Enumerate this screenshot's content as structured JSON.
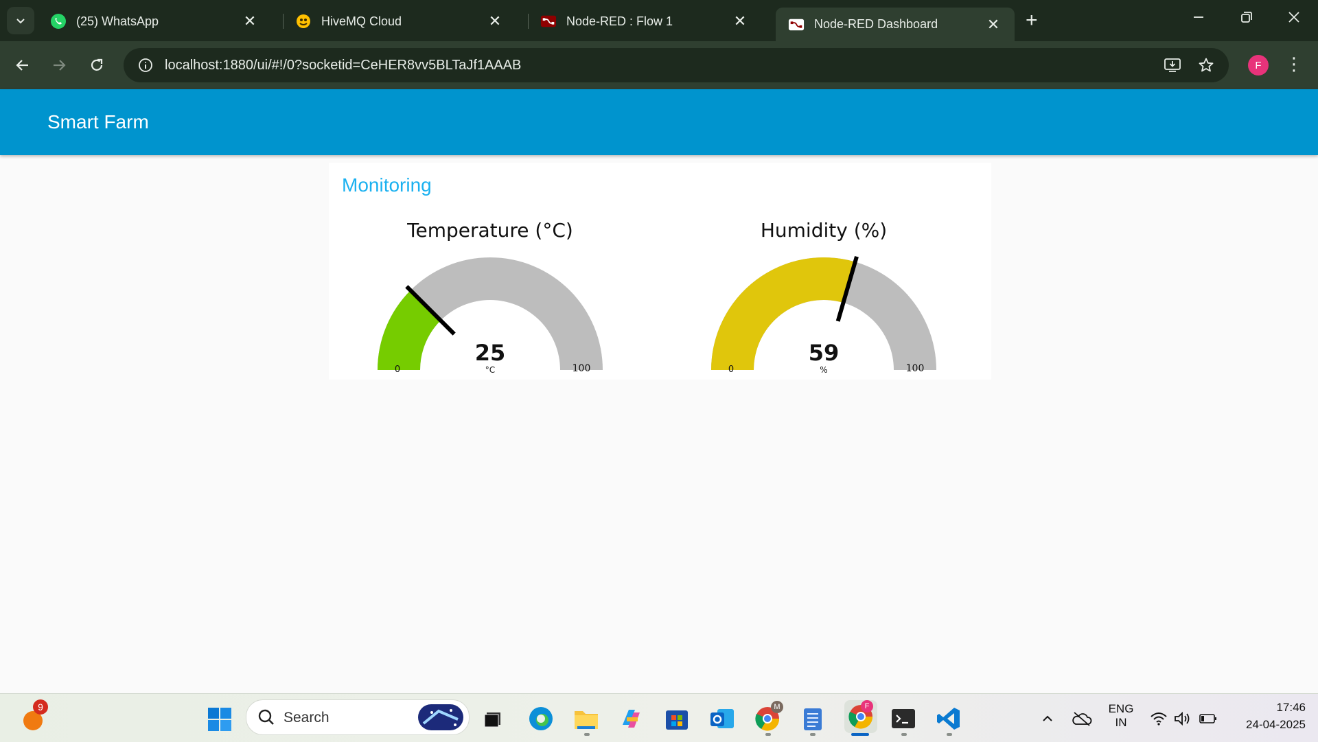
{
  "browser": {
    "tabs": [
      {
        "title": "(25) WhatsApp",
        "icon": "whatsapp-icon",
        "active": false
      },
      {
        "title": "HiveMQ Cloud",
        "icon": "hivemq-icon",
        "active": false
      },
      {
        "title": "Node-RED : Flow 1",
        "icon": "node-red-icon",
        "active": false
      },
      {
        "title": "Node-RED Dashboard",
        "icon": "node-red-icon",
        "active": true
      }
    ],
    "url": "localhost:1880/ui/#!/0?socketid=CeHER8vv5BLTaJf1AAAB",
    "profile_initial": "F"
  },
  "dashboard": {
    "header_title": "Smart Farm",
    "group_title": "Monitoring",
    "gauges": [
      {
        "title": "Temperature (°C)",
        "value": 25,
        "display_value": "25",
        "unit": "°C",
        "min": 0,
        "max": 100,
        "min_label": "0",
        "max_label": "100",
        "color": "#76cc00"
      },
      {
        "title": "Humidity (%)",
        "value": 59,
        "display_value": "59",
        "unit": "%",
        "min": 0,
        "max": 100,
        "min_label": "0",
        "max_label": "100",
        "color": "#e0c60c"
      }
    ],
    "track_color": "#bdbdbd",
    "header_color": "#0094ce",
    "group_title_color": "#1bb1f0"
  },
  "taskbar": {
    "notification_count": "9",
    "search_label": "Search",
    "language_line1": "ENG",
    "language_line2": "IN",
    "time": "17:46",
    "date": "24-04-2025",
    "chrome_badge_m": "M",
    "chrome_badge_f": "F"
  }
}
